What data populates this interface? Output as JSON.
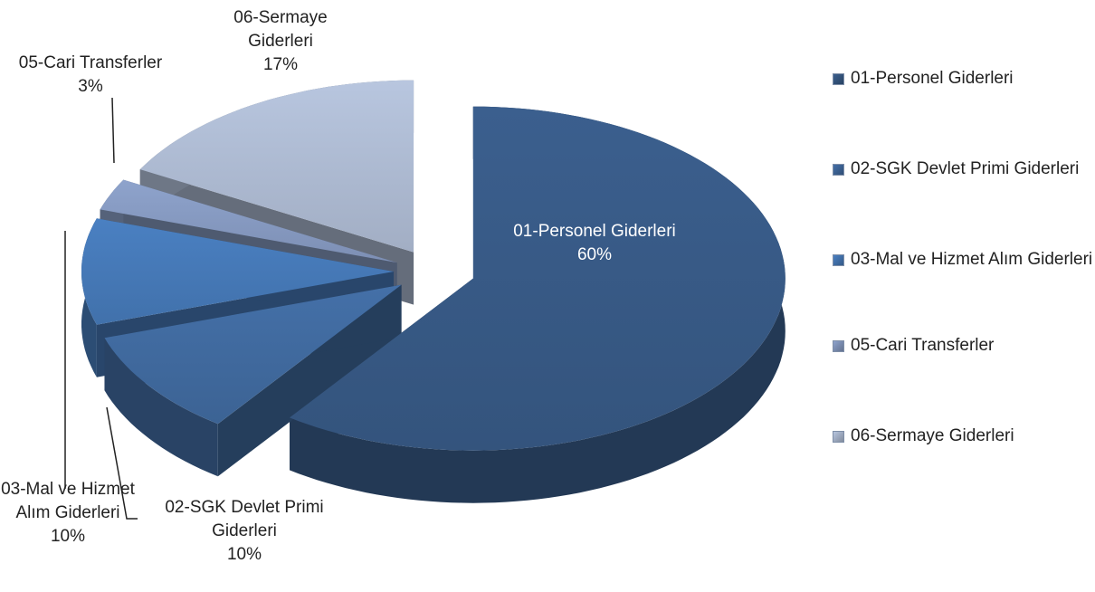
{
  "chart_data": {
    "type": "pie",
    "categories": [
      "01-Personel Giderleri",
      "02-SGK Devlet Primi Giderleri",
      "03-Mal ve Hizmet Alım Giderleri",
      "05-Cari Transferler",
      "06-Sermaye Giderleri"
    ],
    "values": [
      60,
      10,
      10,
      3,
      17
    ],
    "value_labels": [
      "60%",
      "10%",
      "10%",
      "3%",
      "17%"
    ],
    "colors": [
      "#3b5f8e",
      "#4470a8",
      "#4a80c2",
      "#8ea3cc",
      "#b8c6df"
    ],
    "legend": "right"
  }
}
